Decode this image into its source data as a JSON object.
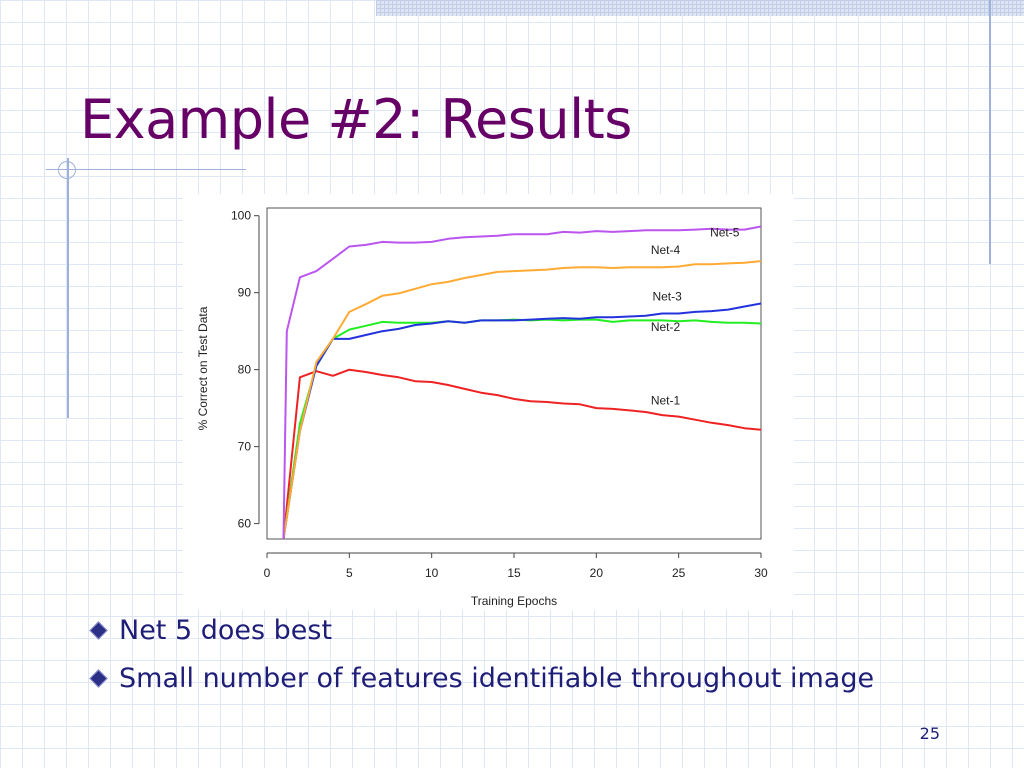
{
  "slide": {
    "title": "Example #2: Results",
    "bullets": [
      "Net 5 does best",
      "Small number of features identifiable throughout image"
    ],
    "page_number": "25"
  },
  "colors": {
    "title": "#660066",
    "text": "#1e1e78"
  },
  "chart_data": {
    "type": "line",
    "xlabel": "Training Epochs",
    "ylabel": "% Correct on Test Data",
    "xlim": [
      0,
      30
    ],
    "ylim": [
      58,
      101
    ],
    "xticks": [
      0,
      5,
      10,
      15,
      20,
      25,
      30
    ],
    "yticks": [
      60,
      70,
      80,
      90,
      100
    ],
    "grid": false,
    "series": [
      {
        "name": "Net-1",
        "color": "#ee2222",
        "x": [
          1,
          2,
          3,
          4,
          5,
          6,
          7,
          8,
          9,
          10,
          11,
          12,
          13,
          14,
          15,
          16,
          17,
          18,
          19,
          20,
          21,
          22,
          23,
          24,
          25,
          26,
          27,
          28,
          29,
          30
        ],
        "y": [
          58,
          79,
          79.8,
          79.2,
          80,
          79.7,
          79.3,
          79,
          78.5,
          78.4,
          78,
          77.5,
          77,
          76.7,
          76.2,
          75.9,
          75.8,
          75.6,
          75.5,
          75,
          74.9,
          74.7,
          74.5,
          74.1,
          73.9,
          73.5,
          73.1,
          72.8,
          72.4,
          72.2
        ]
      },
      {
        "name": "Net-2",
        "color": "#22ee22",
        "x": [
          1,
          2,
          3,
          4,
          5,
          6,
          7,
          8,
          9,
          10,
          11,
          12,
          13,
          14,
          15,
          16,
          17,
          18,
          19,
          20,
          21,
          22,
          23,
          24,
          25,
          26,
          27,
          28,
          29,
          30
        ],
        "y": [
          58,
          73,
          80.5,
          84,
          85.2,
          85.7,
          86.2,
          86.1,
          86.1,
          86.1,
          86.3,
          86.1,
          86.4,
          86.4,
          86.5,
          86.4,
          86.5,
          86.4,
          86.5,
          86.5,
          86.2,
          86.4,
          86.4,
          86.4,
          86.3,
          86.4,
          86.2,
          86.1,
          86.1,
          86
        ]
      },
      {
        "name": "Net-3",
        "color": "#2233dd",
        "x": [
          1,
          2,
          3,
          4,
          5,
          6,
          7,
          8,
          9,
          10,
          11,
          12,
          13,
          14,
          15,
          16,
          17,
          18,
          19,
          20,
          21,
          22,
          23,
          24,
          25,
          26,
          27,
          28,
          29,
          30
        ],
        "y": [
          58,
          72,
          80.5,
          84,
          84,
          84.5,
          85,
          85.3,
          85.8,
          86,
          86.3,
          86.1,
          86.4,
          86.4,
          86.4,
          86.5,
          86.6,
          86.7,
          86.6,
          86.8,
          86.8,
          86.9,
          87,
          87.3,
          87.3,
          87.5,
          87.6,
          87.8,
          88.2,
          88.6
        ]
      },
      {
        "name": "Net-4",
        "color": "#ffaa33",
        "x": [
          1,
          2,
          3,
          4,
          5,
          6,
          7,
          8,
          9,
          10,
          11,
          12,
          13,
          14,
          15,
          16,
          17,
          18,
          19,
          20,
          21,
          22,
          23,
          24,
          25,
          26,
          27,
          28,
          29,
          30
        ],
        "y": [
          58,
          72,
          81,
          84,
          87.5,
          88.5,
          89.6,
          89.9,
          90.5,
          91.1,
          91.4,
          91.9,
          92.3,
          92.7,
          92.8,
          92.9,
          93,
          93.2,
          93.3,
          93.3,
          93.2,
          93.3,
          93.3,
          93.3,
          93.4,
          93.7,
          93.7,
          93.8,
          93.9,
          94.1
        ]
      },
      {
        "name": "Net-5",
        "color": "#bb55ee",
        "x": [
          1,
          1.2,
          2,
          3,
          4,
          5,
          6,
          7,
          8,
          9,
          10,
          11,
          12,
          13,
          14,
          15,
          16,
          17,
          18,
          19,
          20,
          21,
          22,
          23,
          24,
          25,
          26,
          27,
          28,
          29,
          30
        ],
        "y": [
          58,
          85,
          92,
          92.8,
          94.4,
          96,
          96.2,
          96.6,
          96.5,
          96.5,
          96.6,
          97,
          97.2,
          97.3,
          97.4,
          97.6,
          97.6,
          97.6,
          97.9,
          97.8,
          98,
          97.9,
          98,
          98.1,
          98.1,
          98.1,
          98.2,
          98.3,
          98.2,
          98.2,
          98.6
        ]
      }
    ],
    "annotations": [
      {
        "text": "Net-5",
        "x": 27.8,
        "y": 97.3
      },
      {
        "text": "Net-4",
        "x": 24.2,
        "y": 95.0
      },
      {
        "text": "Net-3",
        "x": 24.3,
        "y": 89.0
      },
      {
        "text": "Net-2",
        "x": 24.2,
        "y": 85.0
      },
      {
        "text": "Net-1",
        "x": 24.2,
        "y": 75.5
      }
    ]
  }
}
